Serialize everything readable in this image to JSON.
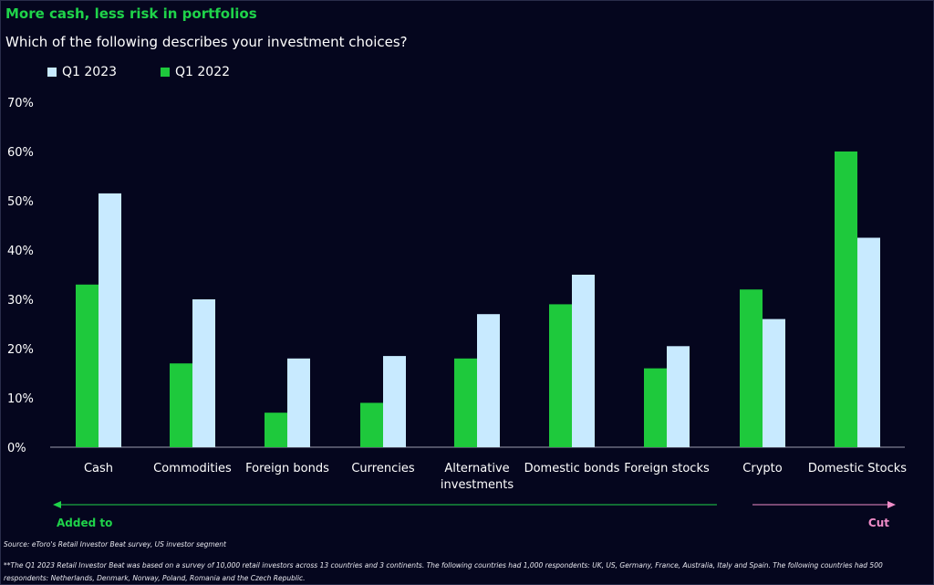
{
  "header": {
    "title": "More cash, less risk in portfolios",
    "subtitle": "Which of the following describes your investment choices?"
  },
  "colors": {
    "background": "#05061e",
    "q1_2023": "#c8eaff",
    "q1_2022": "#1ec93c",
    "title": "#1fd34a",
    "added": "#1fd34a",
    "cut": "#f08cc8"
  },
  "chart_data": {
    "type": "bar",
    "categories": [
      "Cash",
      "Commodities",
      "Foreign bonds",
      "Currencies",
      "Alternative investments",
      "Domestic bonds",
      "Foreign stocks",
      "Crypto",
      "Domestic Stocks"
    ],
    "series": [
      {
        "name": "Q1 2022",
        "values": [
          33,
          17,
          7,
          9,
          18,
          29,
          16,
          32,
          60
        ]
      },
      {
        "name": "Q1 2023",
        "values": [
          51.5,
          30,
          18,
          18.5,
          27,
          35,
          20.5,
          26,
          42.5
        ]
      }
    ],
    "legend": [
      "Q1 2023",
      "Q1 2022"
    ],
    "ylim": [
      0,
      70
    ],
    "yticks": [
      "0%",
      "10%",
      "20%",
      "30%",
      "40%",
      "50%",
      "60%",
      "70%"
    ],
    "grid": false,
    "legend_position": "top-left"
  },
  "annotations": {
    "added_label": "Added to",
    "cut_label": "Cut"
  },
  "footer": {
    "source": "Source: eToro's Retail Investor Beat survey, US investor segment",
    "note": "**The Q1 2023 Retail Investor Beat was based on a survey of 10,000 retail investors across 13 countries and 3 continents. The following countries had 1,000 respondents: UK, US, Germany, France, Australia, Italy and Spain. The following countries had 500 respondents: Netherlands, Denmark, Norway, Poland, Romania and the Czech Republic."
  }
}
